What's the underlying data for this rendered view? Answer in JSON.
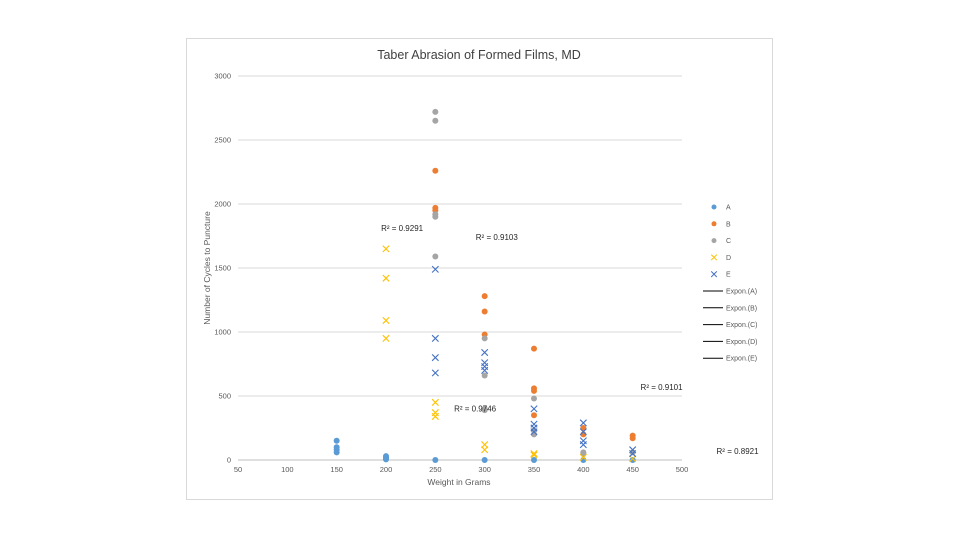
{
  "chart_data": {
    "type": "scatter",
    "title": "Taber Abrasion of Formed Films, MD",
    "xlabel": "Weight in Grams",
    "ylabel": "Number of Cycles to Puncture",
    "xlim": [
      50,
      500
    ],
    "ylim": [
      0,
      3000
    ],
    "x_ticks": [
      "50",
      "100",
      "150",
      "200",
      "250",
      "300",
      "350",
      "400",
      "450",
      "500"
    ],
    "y_ticks": [
      "0",
      "500",
      "1000",
      "1500",
      "2000",
      "2500",
      "3000"
    ],
    "grid": true,
    "legend_position": "right",
    "series": [
      {
        "name": "A",
        "marker": "circle",
        "color": "#5b9bd5",
        "points": [
          [
            150,
            150
          ],
          [
            150,
            100
          ],
          [
            150,
            80
          ],
          [
            150,
            60
          ],
          [
            200,
            30
          ],
          [
            200,
            20
          ],
          [
            200,
            10
          ],
          [
            200,
            5
          ],
          [
            250,
            0
          ],
          [
            300,
            0
          ],
          [
            350,
            0
          ],
          [
            400,
            0
          ],
          [
            450,
            0
          ]
        ]
      },
      {
        "name": "B",
        "marker": "circle",
        "color": "#ed7d31",
        "points": [
          [
            250,
            2260
          ],
          [
            250,
            1970
          ],
          [
            250,
            1950
          ],
          [
            300,
            1280
          ],
          [
            300,
            1160
          ],
          [
            300,
            980
          ],
          [
            350,
            870
          ],
          [
            350,
            560
          ],
          [
            350,
            540
          ],
          [
            350,
            350
          ],
          [
            400,
            250
          ],
          [
            400,
            200
          ],
          [
            450,
            190
          ],
          [
            450,
            170
          ]
        ]
      },
      {
        "name": "C",
        "marker": "circle",
        "color": "#a5a5a5",
        "points": [
          [
            250,
            2720
          ],
          [
            250,
            2650
          ],
          [
            250,
            1920
          ],
          [
            250,
            1900
          ],
          [
            250,
            1590
          ],
          [
            300,
            950
          ],
          [
            300,
            660
          ],
          [
            300,
            400
          ],
          [
            300,
            390
          ],
          [
            350,
            480
          ],
          [
            350,
            230
          ],
          [
            350,
            200
          ],
          [
            400,
            60
          ],
          [
            400,
            50
          ],
          [
            450,
            60
          ]
        ]
      },
      {
        "name": "D",
        "marker": "x",
        "color": "#ffc000",
        "points": [
          [
            200,
            1650
          ],
          [
            200,
            1420
          ],
          [
            200,
            1090
          ],
          [
            200,
            950
          ],
          [
            250,
            450
          ],
          [
            250,
            370
          ],
          [
            250,
            340
          ],
          [
            300,
            120
          ],
          [
            300,
            80
          ],
          [
            350,
            50
          ],
          [
            350,
            40
          ],
          [
            400,
            20
          ],
          [
            450,
            10
          ]
        ]
      },
      {
        "name": "E",
        "marker": "x",
        "color": "#4472c4",
        "points": [
          [
            250,
            1490
          ],
          [
            250,
            950
          ],
          [
            250,
            800
          ],
          [
            250,
            680
          ],
          [
            300,
            840
          ],
          [
            300,
            760
          ],
          [
            300,
            730
          ],
          [
            300,
            700
          ],
          [
            350,
            400
          ],
          [
            350,
            280
          ],
          [
            350,
            250
          ],
          [
            350,
            220
          ],
          [
            400,
            290
          ],
          [
            400,
            220
          ],
          [
            400,
            150
          ],
          [
            400,
            120
          ],
          [
            450,
            80
          ],
          [
            450,
            50
          ]
        ]
      }
    ],
    "trendlines": [
      {
        "name": "Expon.(A)",
        "color": "#000000"
      },
      {
        "name": "Expon.(B)",
        "color": "#000000"
      },
      {
        "name": "Expon.(C)",
        "color": "#000000"
      },
      {
        "name": "Expon.(D)",
        "color": "#000000"
      },
      {
        "name": "Expon.(E)",
        "color": "#000000"
      }
    ],
    "annotations": [
      {
        "text": "R² = 0.9291",
        "x": 195,
        "y": 1790
      },
      {
        "text": "R² = 0.9103",
        "x": 291,
        "y": 1720
      },
      {
        "text": "R² = 0.9746",
        "x": 269,
        "y": 380
      },
      {
        "text": "R² = 0.9101",
        "x": 458,
        "y": 545
      },
      {
        "text": "R² = 0.8921",
        "x": 535,
        "y": 45
      }
    ]
  }
}
